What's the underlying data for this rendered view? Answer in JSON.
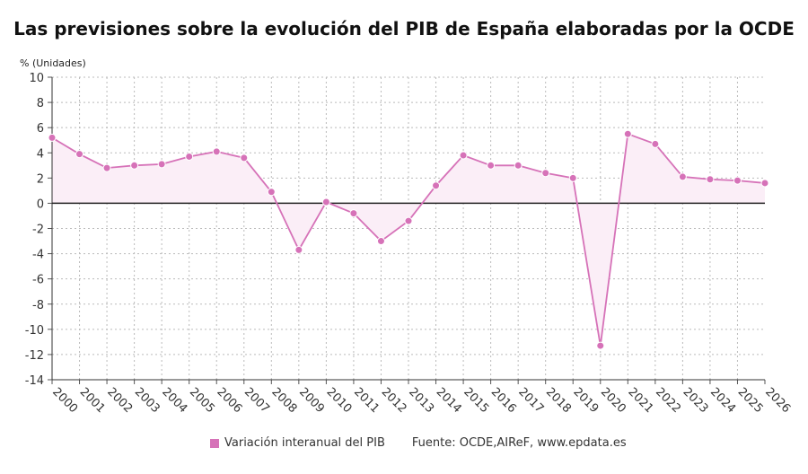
{
  "title": "Las previsiones sobre la evolución del PIB de España elaboradas por la OCDE",
  "source": "Fuente: OCDE,AIReF, www.epdata.es",
  "colors": {
    "line": "#d672b8",
    "fill": "#fbeef7",
    "marker": "#d672b8",
    "zero_line": "#222222",
    "grid": "#bbbbbb"
  },
  "chart_data": {
    "type": "line",
    "title": "Las previsiones sobre la evolución del PIB de España elaboradas por la OCDE",
    "ylabel": "% (Unidades)",
    "xlabel": "",
    "ylim": [
      -14,
      10
    ],
    "yticks": [
      10,
      8,
      6,
      4,
      2,
      0,
      -2,
      -4,
      -6,
      -8,
      -10,
      -12,
      -14
    ],
    "grid": true,
    "legend": "bottom",
    "categories": [
      "2000",
      "2001",
      "2002",
      "2003",
      "2004",
      "2005",
      "2006",
      "2007",
      "2008",
      "2009",
      "2010",
      "2011",
      "2012",
      "2013",
      "2014",
      "2015",
      "2016",
      "2017",
      "2018",
      "2019",
      "2020",
      "2021",
      "2022",
      "2023",
      "2024",
      "2025",
      "2026"
    ],
    "series": [
      {
        "name": "Variación interanual del PIB",
        "values": [
          5.2,
          3.9,
          2.8,
          3.0,
          3.1,
          3.7,
          4.1,
          3.6,
          0.9,
          -3.7,
          0.1,
          -0.8,
          -3.0,
          -1.4,
          1.4,
          3.8,
          3.0,
          3.0,
          2.4,
          2.0,
          -11.3,
          5.5,
          4.7,
          2.1,
          1.9,
          1.8,
          1.6
        ]
      }
    ]
  }
}
